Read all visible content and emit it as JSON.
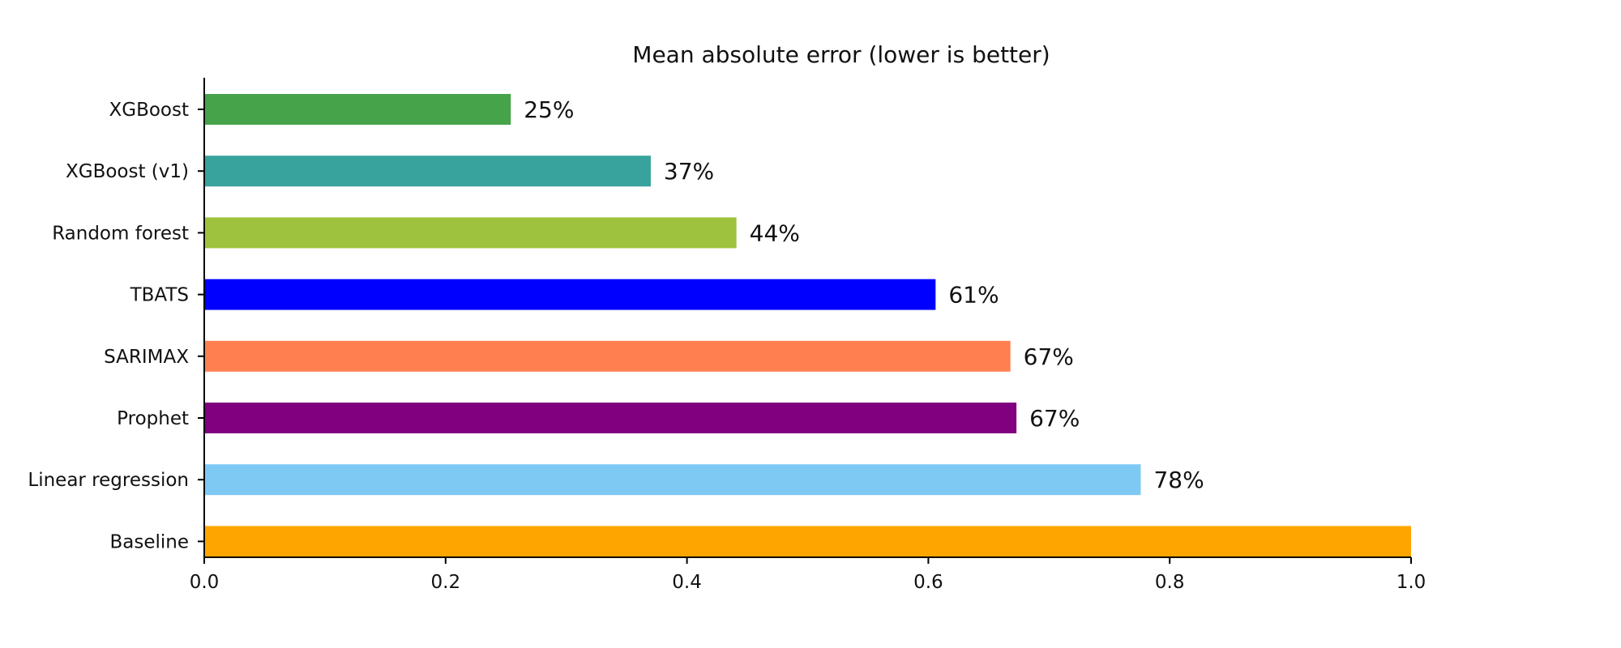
{
  "chart_data": {
    "type": "bar",
    "orientation": "horizontal",
    "title": "Mean absolute error (lower is better)",
    "xlabel": "",
    "ylabel": "",
    "xlim": [
      0,
      1.0
    ],
    "xticks": [
      0.0,
      0.2,
      0.4,
      0.6,
      0.8,
      1.0
    ],
    "xtick_labels": [
      "0.0",
      "0.2",
      "0.4",
      "0.6",
      "0.8",
      "1.0"
    ],
    "grid": false,
    "categories": [
      "XGBoost",
      "XGBoost (v1)",
      "Random forest",
      "TBATS",
      "SARIMAX",
      "Prophet",
      "Linear regression",
      "Baseline"
    ],
    "values": [
      0.254,
      0.37,
      0.441,
      0.606,
      0.668,
      0.673,
      0.776,
      1.0
    ],
    "data_labels": [
      "25%",
      "37%",
      "44%",
      "61%",
      "67%",
      "67%",
      "78%",
      ""
    ],
    "colors": [
      "#46A34A",
      "#38A39C",
      "#9EC23E",
      "#0000FF",
      "#FF7F50",
      "#800080",
      "#7EC8F4",
      "#FFA500"
    ]
  }
}
